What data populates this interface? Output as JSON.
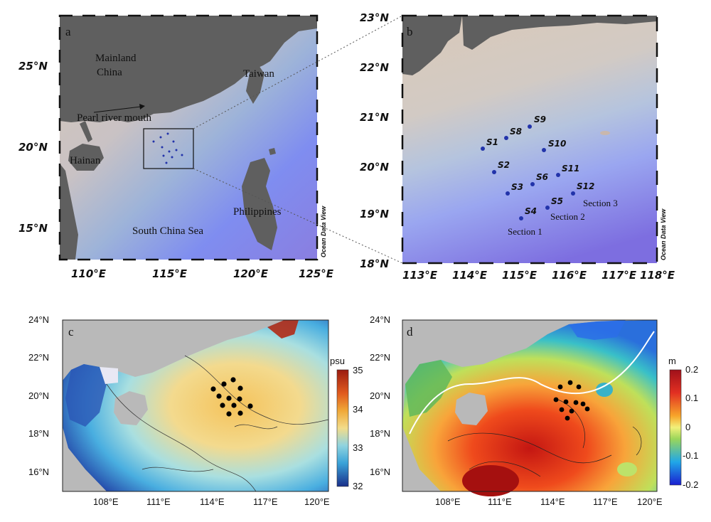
{
  "panels": {
    "a": {
      "label": "a",
      "lat_labels": [
        "25°N",
        "20°N",
        "15°N"
      ],
      "lon_labels": [
        "110°E",
        "115°E",
        "120°E",
        "125°E"
      ],
      "places": [
        "Mainland",
        "China",
        "Taiwan",
        "Pearl river mouth",
        "Hainan",
        "Philippines",
        "South China Sea"
      ],
      "watermark": "Ocean Data View"
    },
    "b": {
      "label": "b",
      "lat_labels": [
        "23°N",
        "22°N",
        "21°N",
        "20°N",
        "19°N",
        "18°N"
      ],
      "lon_labels": [
        "113°E",
        "114°E",
        "115°E",
        "116°E",
        "117°E",
        "118°E"
      ],
      "stations": [
        "S1",
        "S2",
        "S3",
        "S4",
        "S5",
        "S6",
        "S8",
        "S9",
        "S10",
        "S11",
        "S12"
      ],
      "sections": [
        "Section 1",
        "Section 2",
        "Section 3"
      ],
      "watermark": "Ocean Data View"
    },
    "c": {
      "label": "c",
      "lat_labels": [
        "24°N",
        "22°N",
        "20°N",
        "18°N",
        "16°N"
      ],
      "lon_labels": [
        "108°E",
        "111°E",
        "114°E",
        "117°E",
        "120°E"
      ],
      "colorbar_unit": "psu",
      "colorbar_ticks": [
        "35",
        "34",
        "33",
        "32"
      ]
    },
    "d": {
      "label": "d",
      "lat_labels": [
        "24°N",
        "22°N",
        "20°N",
        "18°N",
        "16°N"
      ],
      "lon_labels": [
        "108°E",
        "111°E",
        "114°E",
        "117°E",
        "120°E"
      ],
      "colorbar_unit": "m",
      "colorbar_ticks": [
        "0.2",
        "0.1",
        "0",
        "-0.1",
        "-0.2"
      ]
    }
  },
  "colors": {
    "land": "#5f5f5f",
    "shelf": "#d8c8b8",
    "deep": "#7b78e8",
    "station_blue": "#2233aa",
    "grey_land_cd": "#b9b9b9"
  }
}
